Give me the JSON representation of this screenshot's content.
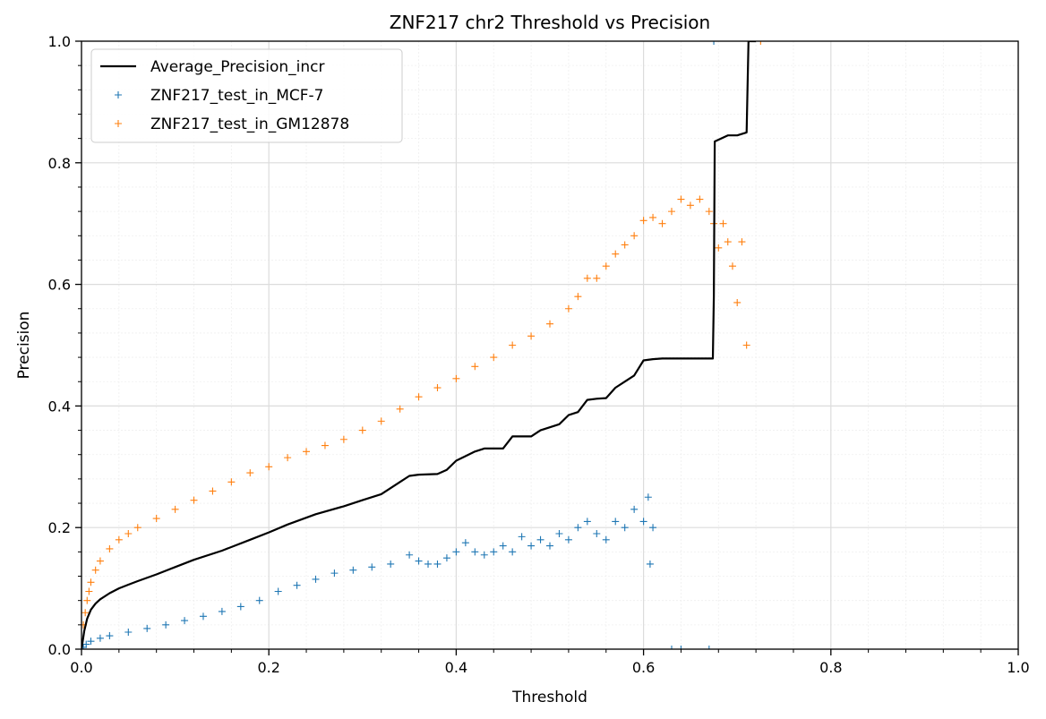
{
  "chart_data": {
    "type": "scatter",
    "title": "ZNF217 chr2 Threshold vs Precision",
    "xlabel": "Threshold",
    "ylabel": "Precision",
    "xlim": [
      0,
      1
    ],
    "ylim": [
      0,
      1
    ],
    "xticks": [
      0.0,
      0.2,
      0.4,
      0.6,
      0.8,
      1.0
    ],
    "yticks": [
      0.0,
      0.2,
      0.4,
      0.6,
      0.8,
      1.0
    ],
    "xtick_labels": [
      "0.0",
      "0.2",
      "0.4",
      "0.6",
      "0.8",
      "1.0"
    ],
    "ytick_labels": [
      "0.0",
      "0.2",
      "0.4",
      "0.6",
      "0.8",
      "1.0"
    ],
    "grid": true,
    "minor_grid": true,
    "legend_position": "top-left",
    "series": [
      {
        "name": "Average_Precision_incr",
        "kind": "line",
        "color": "#000000",
        "x": [
          0.0,
          0.003,
          0.006,
          0.01,
          0.015,
          0.02,
          0.03,
          0.04,
          0.05,
          0.06,
          0.08,
          0.1,
          0.12,
          0.15,
          0.18,
          0.2,
          0.22,
          0.25,
          0.28,
          0.3,
          0.32,
          0.34,
          0.35,
          0.36,
          0.38,
          0.39,
          0.4,
          0.42,
          0.43,
          0.45,
          0.46,
          0.48,
          0.49,
          0.51,
          0.52,
          0.53,
          0.54,
          0.55,
          0.56,
          0.57,
          0.58,
          0.59,
          0.6,
          0.61,
          0.62,
          0.64,
          0.66,
          0.674,
          0.675,
          0.676,
          0.69,
          0.7,
          0.71,
          0.712,
          0.72
        ],
        "y": [
          0.0,
          0.03,
          0.05,
          0.065,
          0.075,
          0.082,
          0.092,
          0.1,
          0.106,
          0.112,
          0.123,
          0.135,
          0.147,
          0.162,
          0.18,
          0.192,
          0.205,
          0.222,
          0.235,
          0.245,
          0.255,
          0.275,
          0.285,
          0.287,
          0.288,
          0.295,
          0.31,
          0.325,
          0.33,
          0.33,
          0.35,
          0.35,
          0.36,
          0.37,
          0.385,
          0.39,
          0.41,
          0.412,
          0.413,
          0.43,
          0.44,
          0.45,
          0.475,
          0.477,
          0.478,
          0.478,
          0.478,
          0.478,
          0.58,
          0.835,
          0.845,
          0.845,
          0.85,
          1.0,
          1.0
        ]
      },
      {
        "name": "ZNF217_test_in_MCF-7",
        "kind": "scatter",
        "marker": "+",
        "color": "#1f77b4",
        "x": [
          0.002,
          0.005,
          0.01,
          0.02,
          0.03,
          0.05,
          0.07,
          0.09,
          0.11,
          0.13,
          0.15,
          0.17,
          0.19,
          0.21,
          0.23,
          0.25,
          0.27,
          0.29,
          0.31,
          0.33,
          0.35,
          0.36,
          0.37,
          0.38,
          0.39,
          0.4,
          0.41,
          0.42,
          0.43,
          0.44,
          0.45,
          0.46,
          0.47,
          0.48,
          0.49,
          0.5,
          0.51,
          0.52,
          0.53,
          0.54,
          0.55,
          0.56,
          0.57,
          0.58,
          0.59,
          0.6,
          0.605,
          0.607,
          0.61,
          0.63,
          0.64,
          0.67,
          0.675
        ],
        "y": [
          0.003,
          0.008,
          0.013,
          0.018,
          0.022,
          0.028,
          0.034,
          0.04,
          0.047,
          0.054,
          0.062,
          0.07,
          0.08,
          0.095,
          0.105,
          0.115,
          0.125,
          0.13,
          0.135,
          0.14,
          0.155,
          0.145,
          0.14,
          0.14,
          0.15,
          0.16,
          0.175,
          0.16,
          0.155,
          0.16,
          0.17,
          0.16,
          0.185,
          0.17,
          0.18,
          0.17,
          0.19,
          0.18,
          0.2,
          0.21,
          0.19,
          0.18,
          0.21,
          0.2,
          0.23,
          0.21,
          0.25,
          0.14,
          0.2,
          0.0,
          0.0,
          0.0,
          1.0
        ]
      },
      {
        "name": "ZNF217_test_in_GM12878",
        "kind": "scatter",
        "marker": "+",
        "color": "#ff7f0e",
        "x": [
          0.002,
          0.004,
          0.006,
          0.008,
          0.01,
          0.015,
          0.02,
          0.03,
          0.04,
          0.05,
          0.06,
          0.08,
          0.1,
          0.12,
          0.14,
          0.16,
          0.18,
          0.2,
          0.22,
          0.24,
          0.26,
          0.28,
          0.3,
          0.32,
          0.34,
          0.36,
          0.38,
          0.4,
          0.42,
          0.44,
          0.46,
          0.48,
          0.5,
          0.52,
          0.53,
          0.54,
          0.55,
          0.56,
          0.57,
          0.58,
          0.59,
          0.6,
          0.61,
          0.62,
          0.63,
          0.64,
          0.65,
          0.66,
          0.67,
          0.675,
          0.68,
          0.685,
          0.69,
          0.695,
          0.7,
          0.705,
          0.71,
          0.725
        ],
        "y": [
          0.04,
          0.06,
          0.08,
          0.095,
          0.11,
          0.13,
          0.145,
          0.165,
          0.18,
          0.19,
          0.2,
          0.215,
          0.23,
          0.245,
          0.26,
          0.275,
          0.29,
          0.3,
          0.315,
          0.325,
          0.335,
          0.345,
          0.36,
          0.375,
          0.395,
          0.415,
          0.43,
          0.445,
          0.465,
          0.48,
          0.5,
          0.515,
          0.535,
          0.56,
          0.58,
          0.61,
          0.61,
          0.63,
          0.65,
          0.665,
          0.68,
          0.705,
          0.71,
          0.7,
          0.72,
          0.74,
          0.73,
          0.74,
          0.72,
          0.7,
          0.66,
          0.7,
          0.67,
          0.63,
          0.57,
          0.67,
          0.5,
          1.0
        ]
      }
    ]
  }
}
